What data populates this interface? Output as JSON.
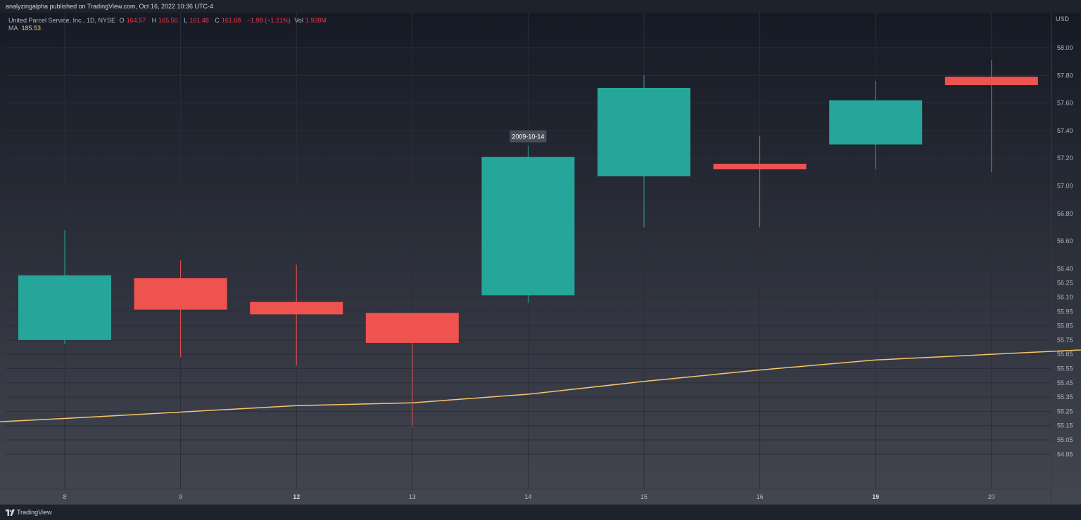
{
  "publisher": "analyzingalpha published on TradingView.com, Oct 16, 2022 10:36 UTC-4",
  "legend": {
    "symbol": "United Parcel Service, Inc., 1D, NYSE",
    "open_label": "O",
    "open": "164.57",
    "high_label": "H",
    "high": "165.56",
    "low_label": "L",
    "low": "161.48",
    "close_label": "C",
    "close": "161.68",
    "change": "−1.98 (−1.21%)",
    "vol_label": "Vol",
    "vol": "1.938M",
    "ma_label": "MA",
    "ma_value": "185.53"
  },
  "footer": {
    "brand": "TradingView"
  },
  "colors": {
    "up": "#26a69a",
    "down": "#ef5350",
    "ma": "#f5c66a",
    "axis_text": "#b2b5be",
    "tooltip_bg": "#4a4e5a"
  },
  "chart_data": {
    "type": "candlestick",
    "yaxis_label": "USD",
    "categories": [
      "8",
      "9",
      "12",
      "13",
      "14",
      "15",
      "16",
      "19",
      "20"
    ],
    "bold_categories": [
      "12",
      "19"
    ],
    "candles": [
      {
        "x": "8",
        "open": 55.75,
        "high": 56.68,
        "low": 55.72,
        "close": 56.33
      },
      {
        "x": "9",
        "open": 56.3,
        "high": 56.46,
        "low": 55.63,
        "close": 55.97
      },
      {
        "x": "12",
        "open": 56.05,
        "high": 56.43,
        "low": 55.57,
        "close": 55.93
      },
      {
        "x": "13",
        "open": 55.94,
        "high": 55.94,
        "low": 55.14,
        "close": 55.73
      },
      {
        "x": "14",
        "open": 56.12,
        "high": 57.29,
        "low": 56.04,
        "close": 57.21
      },
      {
        "x": "15",
        "open": 57.07,
        "high": 57.8,
        "low": 56.7,
        "close": 57.71
      },
      {
        "x": "16",
        "open": 57.16,
        "high": 57.36,
        "low": 56.7,
        "close": 57.12
      },
      {
        "x": "19",
        "open": 57.3,
        "high": 57.76,
        "low": 57.12,
        "close": 57.62
      },
      {
        "x": "20",
        "open": 57.79,
        "high": 57.91,
        "low": 57.1,
        "close": 57.73
      }
    ],
    "ma_series": {
      "name": "MA",
      "points": [
        {
          "x": 7.5,
          "y": 55.16
        },
        {
          "x": 8,
          "y": 55.2
        },
        {
          "x": 12,
          "y": 55.29
        },
        {
          "x": 13,
          "y": 55.31
        },
        {
          "x": 14,
          "y": 55.37
        },
        {
          "x": 15,
          "y": 55.46
        },
        {
          "x": 16,
          "y": 55.54
        },
        {
          "x": 19,
          "y": 55.61
        },
        {
          "x": 20.5,
          "y": 55.69
        }
      ]
    },
    "y_ticks": [
      58.0,
      57.8,
      57.6,
      57.4,
      57.2,
      57.0,
      56.8,
      56.6,
      56.4,
      56.25,
      56.1,
      55.95,
      55.85,
      55.75,
      55.65,
      55.55,
      55.45,
      55.35,
      55.25,
      55.15,
      55.05,
      54.95
    ],
    "y_tick_labels": [
      "58.00",
      "57.80",
      "57.60",
      "57.40",
      "57.20",
      "57.00",
      "56.80",
      "56.60",
      "56.40",
      "56.25",
      "56.10",
      "55.95",
      "55.85",
      "55.75",
      "55.65",
      "55.55",
      "55.45",
      "55.35",
      "55.25",
      "55.15",
      "55.05",
      "54.95"
    ],
    "tooltip": {
      "x": "14",
      "label": "2009-10-14"
    }
  }
}
